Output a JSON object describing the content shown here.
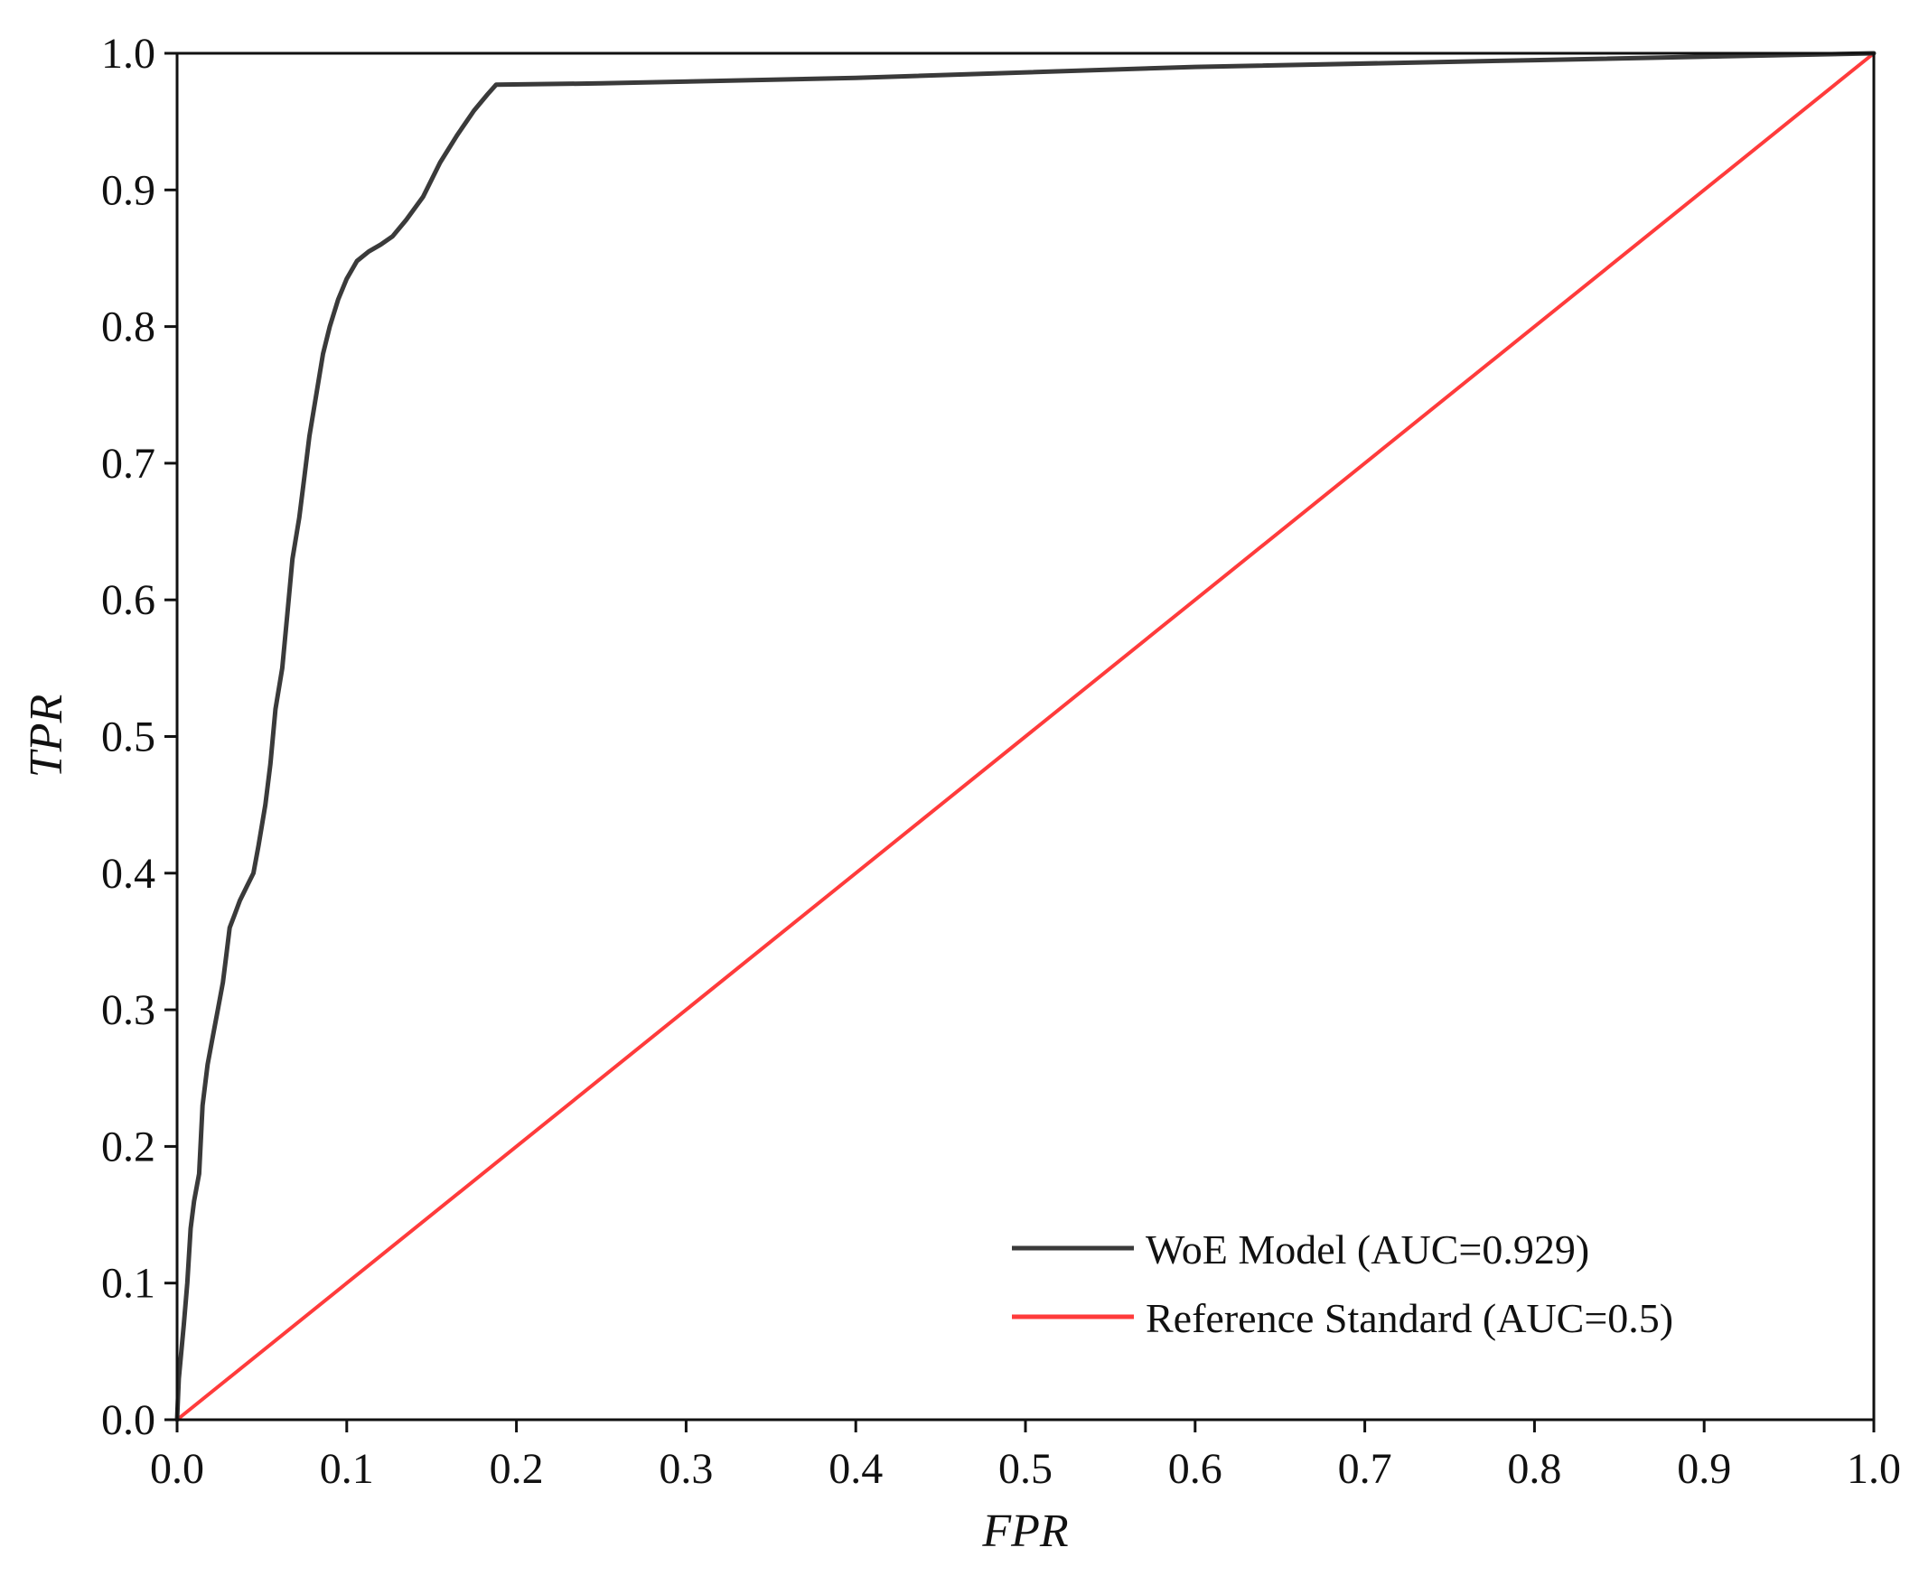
{
  "chart_data": {
    "type": "line",
    "title": "",
    "xlabel": "FPR",
    "ylabel": "TPR",
    "xlim": [
      0.0,
      1.0
    ],
    "ylim": [
      0.0,
      1.0
    ],
    "grid": false,
    "legend_position": "bottom-right",
    "x_ticks": [
      "0.0",
      "0.1",
      "0.2",
      "0.3",
      "0.4",
      "0.5",
      "0.6",
      "0.7",
      "0.8",
      "0.9",
      "1.0"
    ],
    "y_ticks": [
      "0.0",
      "0.1",
      "0.2",
      "0.3",
      "0.4",
      "0.5",
      "0.6",
      "0.7",
      "0.8",
      "0.9",
      "1.0"
    ],
    "series": [
      {
        "name": "WoE Model (AUC=0.929)",
        "color": "#3a3a3a",
        "points": [
          [
            0.0,
            0.0
          ],
          [
            0.001,
            0.03
          ],
          [
            0.004,
            0.07
          ],
          [
            0.006,
            0.1
          ],
          [
            0.008,
            0.14
          ],
          [
            0.01,
            0.16
          ],
          [
            0.013,
            0.18
          ],
          [
            0.015,
            0.23
          ],
          [
            0.018,
            0.26
          ],
          [
            0.021,
            0.28
          ],
          [
            0.024,
            0.3
          ],
          [
            0.027,
            0.32
          ],
          [
            0.029,
            0.34
          ],
          [
            0.031,
            0.36
          ],
          [
            0.034,
            0.37
          ],
          [
            0.037,
            0.38
          ],
          [
            0.041,
            0.39
          ],
          [
            0.045,
            0.4
          ],
          [
            0.048,
            0.42
          ],
          [
            0.052,
            0.45
          ],
          [
            0.055,
            0.48
          ],
          [
            0.058,
            0.52
          ],
          [
            0.062,
            0.55
          ],
          [
            0.065,
            0.59
          ],
          [
            0.068,
            0.63
          ],
          [
            0.072,
            0.66
          ],
          [
            0.075,
            0.69
          ],
          [
            0.078,
            0.72
          ],
          [
            0.082,
            0.75
          ],
          [
            0.086,
            0.78
          ],
          [
            0.09,
            0.8
          ],
          [
            0.095,
            0.82
          ],
          [
            0.1,
            0.835
          ],
          [
            0.106,
            0.848
          ],
          [
            0.113,
            0.855
          ],
          [
            0.12,
            0.86
          ],
          [
            0.127,
            0.866
          ],
          [
            0.135,
            0.878
          ],
          [
            0.145,
            0.895
          ],
          [
            0.155,
            0.92
          ],
          [
            0.165,
            0.94
          ],
          [
            0.175,
            0.958
          ],
          [
            0.183,
            0.97
          ],
          [
            0.188,
            0.977
          ],
          [
            0.25,
            0.978
          ],
          [
            0.4,
            0.982
          ],
          [
            0.6,
            0.99
          ],
          [
            0.8,
            0.995
          ],
          [
            1.0,
            1.0
          ]
        ]
      },
      {
        "name": "Reference Standard (AUC=0.5)",
        "color": "#ff3b3b",
        "points": [
          [
            0.0,
            0.0
          ],
          [
            1.0,
            1.0
          ]
        ]
      }
    ]
  }
}
